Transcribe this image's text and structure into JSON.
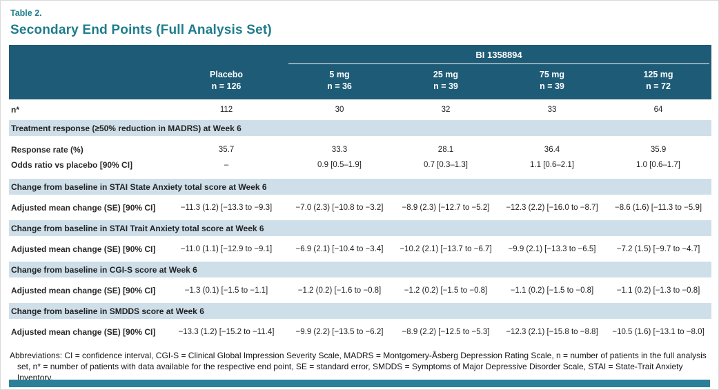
{
  "page": {
    "table_label": "Table 2.",
    "title": "Secondary End Points (Full Analysis Set)",
    "footnote": "Abbreviations: CI = confidence interval, CGI-S = Clinical Global Impression Severity Scale, MADRS = Montgomery-Åsberg Depression Rating Scale, n = number of patients in the full analysis set, n* = number of patients with data available for the respective end point, SE = standard error, SMDDS = Symptoms of Major Depressive Disorder Scale, STAI = State-Trait Anxiety Inventory."
  },
  "colors": {
    "header_bg": "#1e5b76",
    "section_band_bg": "#cfdfe9",
    "accent_teal": "#1d7d8c",
    "bottom_bar": "#2c7f99"
  },
  "table": {
    "group_header": "BI 1358894",
    "columns": [
      {
        "name": "Placebo",
        "n": "n = 126"
      },
      {
        "name": "5 mg",
        "n": "n = 36"
      },
      {
        "name": "25 mg",
        "n": "n = 39"
      },
      {
        "name": "75 mg",
        "n": "n = 39"
      },
      {
        "name": "125 mg",
        "n": "n = 72"
      }
    ],
    "n_row": {
      "label": "n*",
      "values": [
        "112",
        "30",
        "32",
        "33",
        "64"
      ]
    },
    "sections": [
      {
        "heading": "Treatment response (≥50% reduction in MADRS) at Week 6",
        "rows": [
          {
            "label": "Response rate (%)",
            "values": [
              "35.7",
              "33.3",
              "28.1",
              "36.4",
              "35.9"
            ]
          },
          {
            "label": "Odds ratio vs placebo [90% CI]",
            "values": [
              "–",
              "0.9 [0.5–1.9]",
              "0.7 [0.3–1.3]",
              "1.1 [0.6–2.1]",
              "1.0 [0.6–1.7]"
            ]
          }
        ]
      },
      {
        "heading": "Change from baseline in STAI State Anxiety total score at Week 6",
        "rows": [
          {
            "label": "Adjusted mean change (SE) [90% CI]",
            "values": [
              "−11.3 (1.2) [−13.3 to −9.3]",
              "−7.0 (2.3) [−10.8 to −3.2]",
              "−8.9 (2.3) [−12.7 to −5.2]",
              "−12.3 (2.2) [−16.0 to −8.7]",
              "−8.6 (1.6) [−11.3 to −5.9]"
            ]
          }
        ]
      },
      {
        "heading": "Change from baseline in STAI Trait Anxiety total score at Week 6",
        "rows": [
          {
            "label": "Adjusted mean change (SE) [90% CI]",
            "values": [
              "−11.0 (1.1) [−12.9 to −9.1]",
              "−6.9 (2.1) [−10.4 to −3.4]",
              "−10.2 (2.1) [−13.7 to −6.7]",
              "−9.9 (2.1) [−13.3 to −6.5]",
              "−7.2 (1.5) [−9.7 to −4.7]"
            ]
          }
        ]
      },
      {
        "heading": "Change from baseline in CGI-S score at Week 6",
        "rows": [
          {
            "label": "Adjusted mean change (SE) [90% CI]",
            "values": [
              "−1.3 (0.1) [−1.5 to −1.1]",
              "−1.2 (0.2) [−1.6 to −0.8]",
              "−1.2 (0.2) [−1.5 to −0.8]",
              "−1.1 (0.2) [−1.5 to −0.8]",
              "−1.1 (0.2) [−1.3 to −0.8]"
            ]
          }
        ]
      },
      {
        "heading": "Change from baseline in SMDDS score at Week 6",
        "rows": [
          {
            "label": "Adjusted mean change (SE) [90% CI]",
            "values": [
              "−13.3 (1.2) [−15.2 to −11.4]",
              "−9.9 (2.2) [−13.5 to −6.2]",
              "−8.9 (2.2) [−12.5 to −5.3]",
              "−12.3 (2.1) [−15.8 to −8.8]",
              "−10.5 (1.6) [−13.1 to −8.0]"
            ]
          }
        ]
      }
    ]
  }
}
